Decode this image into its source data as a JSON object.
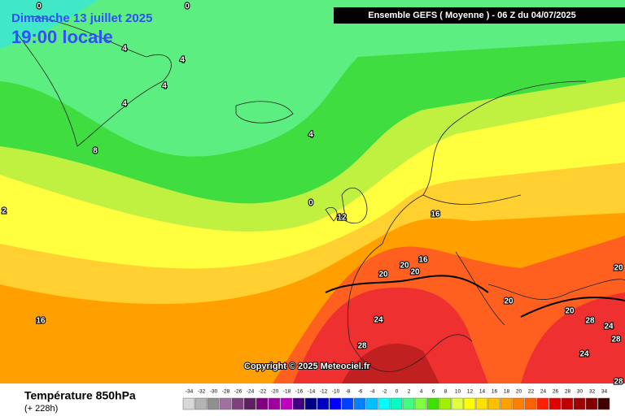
{
  "header": {
    "date": "Dimanche 13 juillet 2025",
    "time": "19:00 locale",
    "model": "Ensemble GEFS  ( Moyenne )  -  06 Z du 04/07/2025"
  },
  "copyright": "Copyright © 2025 Meteociel.fr",
  "footer": {
    "parameter": "Température 850hPa",
    "lead": "(+ 228h)"
  },
  "contour_labels": [
    0,
    0,
    4,
    4,
    4,
    4,
    8,
    4,
    0,
    12,
    16,
    2,
    16,
    20,
    16,
    20,
    20,
    20,
    20,
    24,
    28,
    24,
    28,
    28,
    24,
    28,
    20
  ],
  "legend": {
    "values": [
      -34,
      -32,
      -30,
      -28,
      -26,
      -24,
      -22,
      -20,
      -18,
      -16,
      -14,
      -12,
      -10,
      -8,
      -6,
      -4,
      -2,
      0,
      2,
      4,
      6,
      8,
      10,
      12,
      14,
      16,
      18,
      20,
      22,
      24,
      26,
      28,
      30,
      32,
      34
    ],
    "colors": [
      "#d8d8d8",
      "#b4b4b4",
      "#909090",
      "#a070a0",
      "#804080",
      "#602060",
      "#800080",
      "#a000a0",
      "#c000c0",
      "#400080",
      "#000080",
      "#0000c0",
      "#0000ff",
      "#0040ff",
      "#0080ff",
      "#00c0ff",
      "#00ffff",
      "#00ffc0",
      "#40ff80",
      "#80ff40",
      "#40e000",
      "#a0f000",
      "#e0ff40",
      "#ffff00",
      "#ffe000",
      "#ffc000",
      "#ffa000",
      "#ff8000",
      "#ff6000",
      "#ff2000",
      "#e00000",
      "#c00000",
      "#a00000",
      "#800000",
      "#400000"
    ]
  }
}
